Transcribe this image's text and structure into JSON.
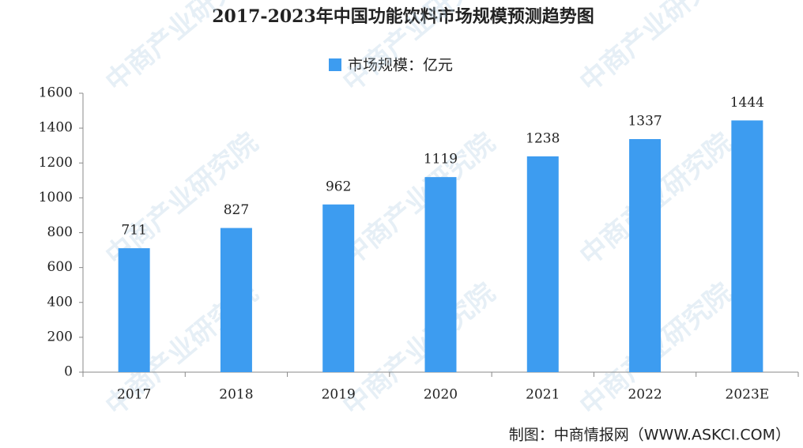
{
  "chart_data": {
    "type": "bar",
    "title": "2017-2023年中国功能饮料市场规模预测趋势图",
    "legend": "市场规模：亿元",
    "categories": [
      "2017",
      "2018",
      "2019",
      "2020",
      "2021",
      "2022",
      "2023E"
    ],
    "values": [
      711,
      827,
      962,
      1119,
      1238,
      1337,
      1444
    ],
    "color": "#3d9cf0",
    "ylim": [
      0,
      1600
    ],
    "yticks": [
      0,
      200,
      400,
      600,
      800,
      1000,
      1200,
      1400,
      1600
    ],
    "grid": false,
    "source": "制图：中商情报网（WWW.ASKCI.COM）",
    "watermark": "中商产业研究院"
  }
}
